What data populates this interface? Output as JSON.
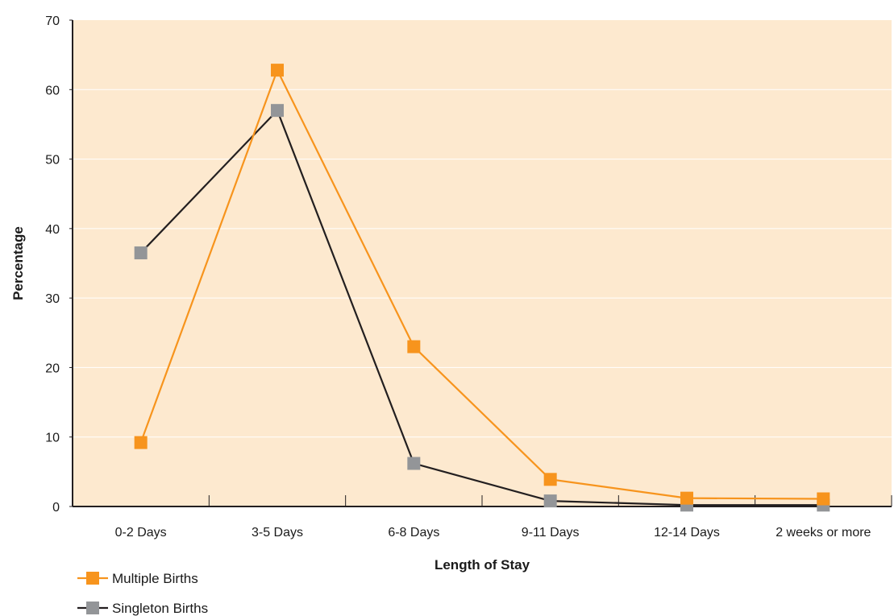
{
  "chart_data": {
    "type": "line",
    "title": "",
    "xlabel": "Length of Stay",
    "ylabel": "Percentage",
    "categories": [
      "0-2 Days",
      "3-5 Days",
      "6-8 Days",
      "9-11 Days",
      "12-14 Days",
      "2 weeks or more"
    ],
    "ylim": [
      0,
      70
    ],
    "yticks": [
      0,
      10,
      20,
      30,
      40,
      50,
      60,
      70
    ],
    "grid": true,
    "legend_position": "bottom-left",
    "series": [
      {
        "name": "Multiple Births",
        "values": [
          9.2,
          62.8,
          23.0,
          3.9,
          1.2,
          1.1
        ],
        "line_color": "#f7941d",
        "marker_color": "#f7941d"
      },
      {
        "name": "Singleton Births",
        "values": [
          36.5,
          57.0,
          6.2,
          0.8,
          0.2,
          0.2
        ],
        "line_color": "#231f20",
        "marker_color": "#939598"
      }
    ],
    "plot_background": "#fde9cf",
    "grid_color": "#ffffff"
  }
}
